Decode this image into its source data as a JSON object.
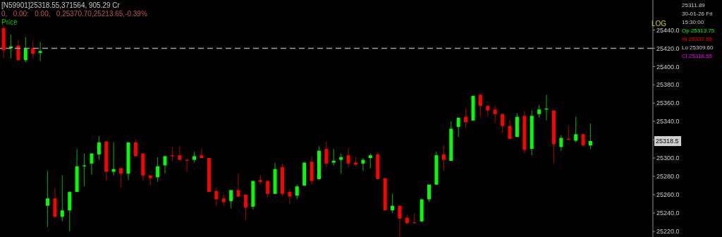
{
  "chart_data": {
    "type": "candlestick",
    "annotations": [
      "[N59901]25318.55,371564, 905.29 Cr",
      "0,   0.00:   0.00,   0,25370.70,25213.65,-0.39%",
      "Price",
      "LOG",
      "25311.89",
      "30-01-26 Fri",
      "15:30:00",
      "Op 25313.75",
      "Hi 25337.65",
      "Lo 25309.60",
      "Cl 25318.55",
      {
        "text": "25318.5",
        "y": 25318.5
      }
    ],
    "categories": [
      null,
      null,
      null,
      null,
      null,
      null,
      null,
      null,
      null,
      null,
      null,
      null,
      null,
      null,
      null,
      null,
      null,
      null,
      null,
      null,
      null,
      null,
      null,
      null,
      null,
      null,
      null,
      null,
      null,
      null,
      null,
      null,
      null,
      null,
      null,
      null,
      null,
      null,
      null,
      null,
      null,
      null,
      null,
      null,
      null,
      null,
      null,
      null,
      null,
      null,
      null,
      null,
      null,
      null,
      null,
      null,
      null,
      null,
      null,
      null,
      null,
      null,
      null,
      null,
      null,
      null,
      null,
      null,
      null,
      null,
      null,
      null,
      null,
      null,
      null,
      null,
      null,
      null,
      null,
      null,
      null,
      null,
      null,
      null,
      null,
      null,
      null,
      null,
      null
    ],
    "ohlc": [
      [
        25442,
        25446,
        25409,
        25418
      ],
      [
        25420,
        25435,
        25409,
        25422
      ],
      [
        25423,
        25429,
        25407,
        25407
      ],
      [
        25407,
        25432,
        25405,
        25420
      ],
      [
        25420,
        25428,
        25409,
        25414
      ],
      [
        25415,
        25427,
        25406,
        25417
      ],
      [
        25248,
        25286,
        25225,
        25256
      ],
      [
        25256,
        25267,
        25235,
        25236
      ],
      [
        25236,
        25281,
        25231,
        25243
      ],
      [
        25243,
        25264,
        25220,
        25263
      ],
      [
        25263,
        25310,
        25263,
        25291
      ],
      [
        25291,
        25305,
        25269,
        25292
      ],
      [
        25294,
        25305,
        25282,
        25305
      ],
      [
        25304,
        25324,
        25298,
        25317
      ],
      [
        25318,
        25318,
        25275,
        25285
      ],
      [
        25285,
        25317,
        25281,
        25288
      ],
      [
        25289,
        25289,
        25268,
        25283
      ],
      [
        25283,
        25317,
        25276,
        25317
      ],
      [
        25317,
        25320,
        25302,
        25302
      ],
      [
        25305,
        25305,
        25275,
        25281
      ],
      [
        25281,
        25281,
        25270,
        25278
      ],
      [
        25279,
        25301,
        25274,
        25291
      ],
      [
        25292,
        25302,
        25283,
        25302
      ],
      [
        25303,
        25312,
        25297,
        25302
      ],
      [
        25303,
        25313,
        25298,
        25298
      ],
      [
        25298,
        25298,
        25285,
        25297
      ],
      [
        25298,
        25307,
        25295,
        25302
      ],
      [
        25303,
        25310,
        25300,
        25300
      ],
      [
        25300,
        25300,
        25263,
        25263
      ],
      [
        25264,
        25268,
        25248,
        25255
      ],
      [
        25256,
        25260,
        25248,
        25252
      ],
      [
        25253,
        25265,
        25245,
        25265
      ],
      [
        25265,
        25283,
        25258,
        25258
      ],
      [
        25260,
        25260,
        25232,
        25246
      ],
      [
        25247,
        25275,
        25244,
        25275
      ],
      [
        25276,
        25281,
        25271,
        25274
      ],
      [
        25275,
        25275,
        25257,
        25261
      ],
      [
        25261,
        25295,
        25261,
        25288
      ],
      [
        25290,
        25294,
        25258,
        25261
      ],
      [
        25263,
        25266,
        25250,
        25258
      ],
      [
        25259,
        25271,
        25255,
        25269
      ],
      [
        25270,
        25295,
        25270,
        25295
      ],
      [
        25296,
        25302,
        25271,
        25275
      ],
      [
        25277,
        25313,
        25277,
        25308
      ],
      [
        25310,
        25318,
        25290,
        25294
      ],
      [
        25295,
        25310,
        25292,
        25297
      ],
      [
        25298,
        25305,
        25283,
        25301
      ],
      [
        25303,
        25311,
        25290,
        25294
      ],
      [
        25295,
        25301,
        25291,
        25293
      ],
      [
        25294,
        25300,
        25286,
        25298
      ],
      [
        25300,
        25305,
        25289,
        25303
      ],
      [
        25304,
        25306,
        25277,
        25277
      ],
      [
        25278,
        25278,
        25243,
        25243
      ],
      [
        25243,
        25261,
        25240,
        25248
      ],
      [
        25248,
        25248,
        25215,
        25234
      ],
      [
        25235,
        25238,
        25228,
        25229
      ],
      [
        25230,
        25240,
        25229,
        25229
      ],
      [
        25231,
        25255,
        25231,
        25255
      ],
      [
        25255,
        25271,
        25252,
        25271
      ],
      [
        25271,
        25307,
        25271,
        25303
      ],
      [
        25304,
        25314,
        25286,
        25298
      ],
      [
        25297,
        25340,
        25297,
        25332
      ],
      [
        25334,
        25344,
        25323,
        25344
      ],
      [
        25345,
        25354,
        25333,
        25339
      ],
      [
        25341,
        25368,
        25341,
        25368
      ],
      [
        25369,
        25371,
        25345,
        25357
      ],
      [
        25357,
        25357,
        25345,
        25352
      ],
      [
        25353,
        25357,
        25338,
        25348
      ],
      [
        25348,
        25348,
        25328,
        25335
      ],
      [
        25335,
        25342,
        25321,
        25321
      ],
      [
        25323,
        25349,
        25323,
        25345
      ],
      [
        25346,
        25351,
        25305,
        25309
      ],
      [
        25310,
        25352,
        25303,
        25346
      ],
      [
        25348,
        25358,
        25344,
        25353
      ],
      [
        25353,
        25369,
        25341,
        25354
      ],
      [
        25352,
        25352,
        25294,
        25315
      ],
      [
        25312,
        25325,
        25308,
        25322
      ],
      [
        25321,
        25335,
        25320,
        25320
      ],
      [
        25319,
        25345,
        25317,
        25326
      ],
      [
        25326,
        25326,
        25312,
        25314
      ],
      [
        25313.75,
        25337.65,
        25309.6,
        25318.55
      ],
      null,
      null,
      null,
      null,
      null,
      null,
      null,
      null
    ],
    "colors": [
      "#ff0000",
      "#00ff00",
      "#ff0000",
      "#00ff00",
      "#ff0000",
      "#00ff00",
      "#00ff00",
      "#ff0000",
      "#00ff00",
      "#00ff00",
      "#00ff00",
      "#00ff00",
      "#00ff00",
      "#00ff00",
      "#ff0000",
      "#00ff00",
      "#ff0000",
      "#00ff00",
      "#ff0000",
      "#ff0000",
      "#ff0000",
      "#00ff00",
      "#00ff00",
      "#ff0000",
      "#ff0000",
      "#ff0000",
      "#00ff00",
      "#ff0000",
      "#ff0000",
      "#ff0000",
      "#ff0000",
      "#00ff00",
      "#ff0000",
      "#ff0000",
      "#00ff00",
      "#ff0000",
      "#ff0000",
      "#00ff00",
      "#ff0000",
      "#ff0000",
      "#00ff00",
      "#00ff00",
      "#ff0000",
      "#00ff00",
      "#ff0000",
      "#00ff00",
      "#00ff00",
      "#ff0000",
      "#ff0000",
      "#00ff00",
      "#00ff00",
      "#ff0000",
      "#ff0000",
      "#00ff00",
      "#ff0000",
      "#ff0000",
      "#ff0000",
      "#00ff00",
      "#00ff00",
      "#00ff00",
      "#ff0000",
      "#00ff00",
      "#00ff00",
      "#ff0000",
      "#00ff00",
      "#ff0000",
      "#ff0000",
      "#ff0000",
      "#ff0000",
      "#ff0000",
      "#00ff00",
      "#ff0000",
      "#00ff00",
      "#00ff00",
      "#00ff00",
      "#ff0000",
      "#00ff00",
      "#ff0000",
      "#00ff00",
      "#ff0000",
      "#00ff00",
      null,
      null,
      null,
      null,
      null,
      null,
      null,
      null
    ],
    "ylim": [
      25214,
      25473
    ],
    "yticks": [
      {
        "value": 25220,
        "label": "25220.0"
      },
      {
        "value": 25240,
        "label": "25240.0"
      },
      {
        "value": 25260,
        "label": "25260.0"
      },
      {
        "value": 25280,
        "label": "25280.0"
      },
      {
        "value": 25300,
        "label": "25300.0"
      },
      {
        "value": 25320,
        "label": null
      },
      {
        "value": 25340,
        "label": "25340.0"
      },
      {
        "value": 25360,
        "label": "25360.0"
      },
      {
        "value": 25380,
        "label": "25380.0"
      },
      {
        "value": 25400,
        "label": "25400.0"
      },
      {
        "value": 25420,
        "label": "25420.0"
      },
      {
        "value": 25440,
        "label": "25440.0"
      }
    ],
    "ref_lines": [
      {
        "axis": "y",
        "value": 25420,
        "color": "#a0a0a0",
        "line_style": "dashed"
      }
    ],
    "log": true,
    "tick_labels": "y"
  }
}
